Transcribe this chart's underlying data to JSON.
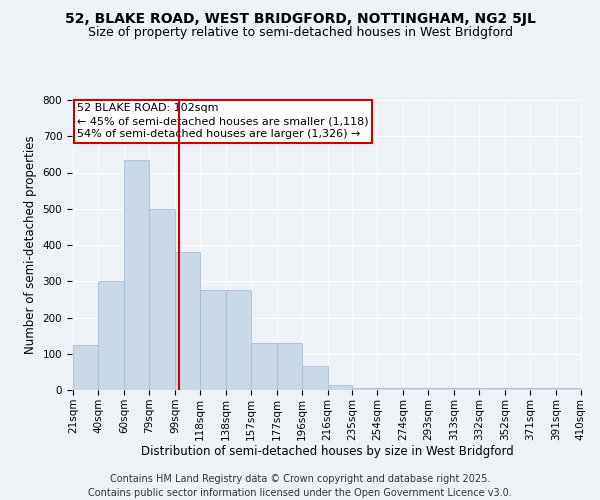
{
  "title_line1": "52, BLAKE ROAD, WEST BRIDGFORD, NOTTINGHAM, NG2 5JL",
  "title_line2": "Size of property relative to semi-detached houses in West Bridgford",
  "xlabel": "Distribution of semi-detached houses by size in West Bridgford",
  "ylabel": "Number of semi-detached properties",
  "annotation_title": "52 BLAKE ROAD: 102sqm",
  "annotation_line1": "← 45% of semi-detached houses are smaller (1,118)",
  "annotation_line2": "54% of semi-detached houses are larger (1,326) →",
  "footer_line1": "Contains HM Land Registry data © Crown copyright and database right 2025.",
  "footer_line2": "Contains public sector information licensed under the Open Government Licence v3.0.",
  "bin_labels": [
    "21sqm",
    "40sqm",
    "60sqm",
    "79sqm",
    "99sqm",
    "118sqm",
    "138sqm",
    "157sqm",
    "177sqm",
    "196sqm",
    "216sqm",
    "235sqm",
    "254sqm",
    "274sqm",
    "293sqm",
    "313sqm",
    "332sqm",
    "352sqm",
    "371sqm",
    "391sqm",
    "410sqm"
  ],
  "bin_edges": [
    21,
    40,
    60,
    79,
    99,
    118,
    138,
    157,
    177,
    196,
    216,
    235,
    254,
    274,
    293,
    313,
    332,
    352,
    371,
    391,
    410
  ],
  "bar_heights": [
    125,
    300,
    635,
    500,
    380,
    275,
    275,
    130,
    130,
    65,
    15,
    5,
    5,
    5,
    5,
    5,
    5,
    5,
    5,
    5
  ],
  "bar_color": "#c9d9e8",
  "bar_edge_color": "#a0b8cc",
  "property_size": 102,
  "vline_color": "#cc0000",
  "ylim": [
    0,
    800
  ],
  "yticks": [
    0,
    100,
    200,
    300,
    400,
    500,
    600,
    700,
    800
  ],
  "background_color": "#eef2f7",
  "plot_bg_color": "#eef2f7",
  "annotation_box_color": "#ffffff",
  "annotation_box_edge": "#cc0000",
  "title_fontsize": 10,
  "subtitle_fontsize": 9,
  "axis_label_fontsize": 8.5,
  "tick_fontsize": 7.5,
  "annotation_fontsize": 8,
  "footer_fontsize": 7
}
